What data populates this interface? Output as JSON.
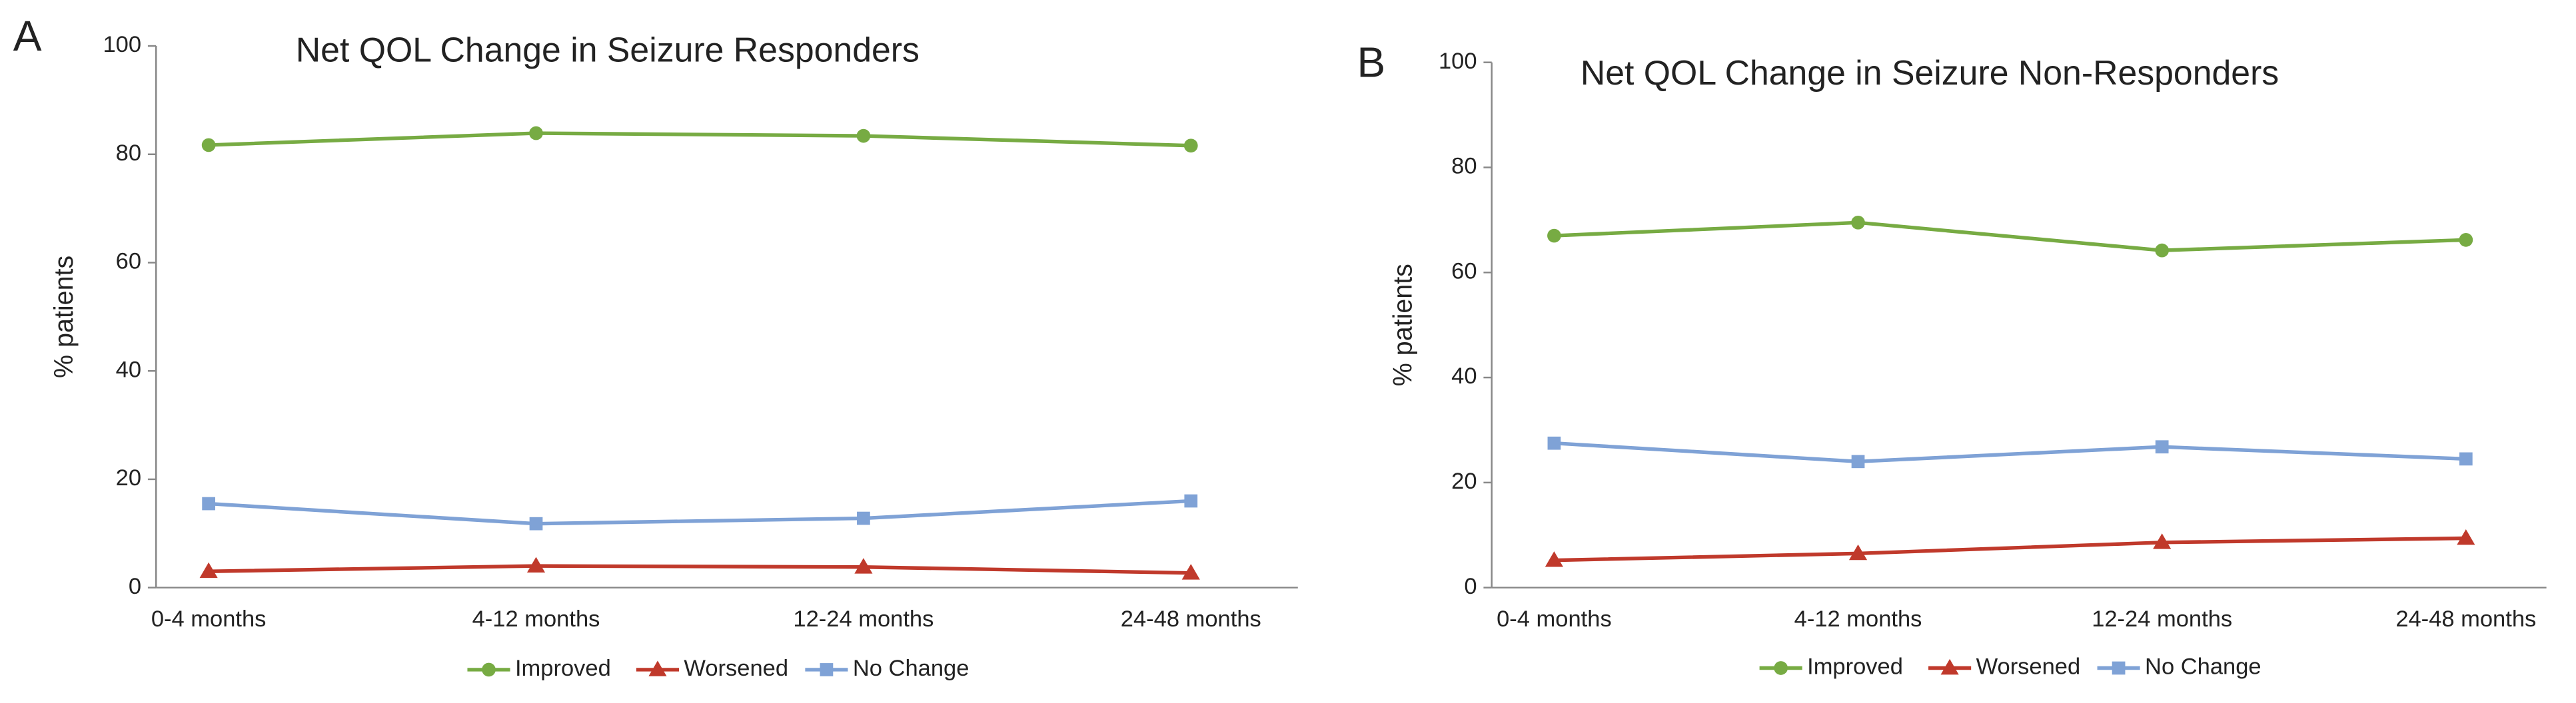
{
  "chart_data": [
    {
      "type": "line",
      "panel_label": "A",
      "title": "Net QOL Change in Seizure Responders",
      "y_label": "% patients",
      "categories": [
        "0-4 months",
        "4-12 months",
        "12-24 months",
        "24-48 months"
      ],
      "series": [
        {
          "name": "Improved",
          "color": "#77ab43",
          "marker": "circle",
          "values": [
            81.7,
            83.9,
            83.4,
            81.6
          ]
        },
        {
          "name": "Worsened",
          "color": "#c0392b",
          "marker": "triangle",
          "values": [
            3.0,
            4.0,
            3.8,
            2.7
          ]
        },
        {
          "name": "No Change",
          "color": "#7fa2d6",
          "marker": "square",
          "values": [
            15.5,
            11.8,
            12.8,
            16.0
          ]
        }
      ],
      "ylim": [
        0,
        100
      ],
      "yticks": [
        0,
        20,
        40,
        60,
        80,
        100
      ],
      "legend": "bottom"
    },
    {
      "type": "line",
      "panel_label": "B",
      "title": "Net QOL Change in Seizure Non-Responders",
      "y_label": "% patients",
      "categories": [
        "0-4 months",
        "4-12 months",
        "12-24 months",
        "24-48 months"
      ],
      "series": [
        {
          "name": "Improved",
          "color": "#77ab43",
          "marker": "circle",
          "values": [
            67.0,
            69.5,
            64.2,
            66.2
          ]
        },
        {
          "name": "Worsened",
          "color": "#c0392b",
          "marker": "triangle",
          "values": [
            5.2,
            6.5,
            8.6,
            9.4
          ]
        },
        {
          "name": "No Change",
          "color": "#7fa2d6",
          "marker": "square",
          "values": [
            27.5,
            24.0,
            26.8,
            24.5
          ]
        }
      ],
      "ylim": [
        0,
        100
      ],
      "yticks": [
        0,
        20,
        40,
        60,
        80,
        100
      ],
      "legend": "bottom"
    }
  ]
}
